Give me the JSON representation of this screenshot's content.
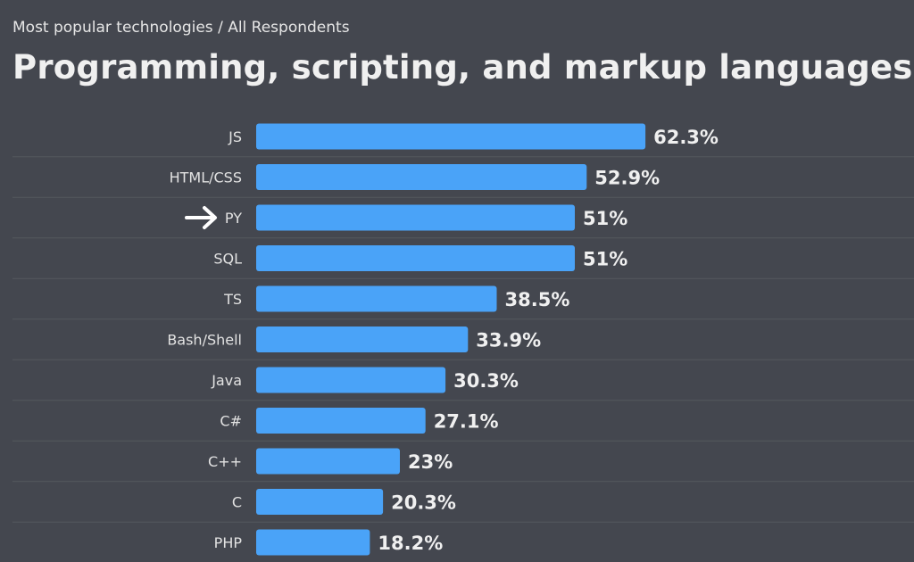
{
  "header": {
    "breadcrumb": "Most popular technologies / All Respondents",
    "title": "Programming, scripting, and markup languages"
  },
  "colors": {
    "background": "#44474f",
    "bar": "#4aa3f8",
    "separator": "#55585f",
    "text": "#f0f0f0"
  },
  "chart_data": {
    "type": "bar",
    "orientation": "horizontal",
    "categories": [
      "JS",
      "HTML/CSS",
      "PY",
      "SQL",
      "TS",
      "Bash/Shell",
      "Java",
      "C#",
      "C++",
      "C",
      "PHP"
    ],
    "values": [
      62.3,
      52.9,
      51,
      51,
      38.5,
      33.9,
      30.3,
      27.1,
      23,
      20.3,
      18.2
    ],
    "value_labels": [
      "62.3%",
      "52.9%",
      "51%",
      "51%",
      "38.5%",
      "33.9%",
      "30.3%",
      "27.1%",
      "23%",
      "20.3%",
      "18.2%"
    ],
    "highlighted_category": "PY",
    "highlight_marker": "right-arrow-icon",
    "xlim": [
      0,
      100
    ],
    "grid": false,
    "legend": "none"
  }
}
